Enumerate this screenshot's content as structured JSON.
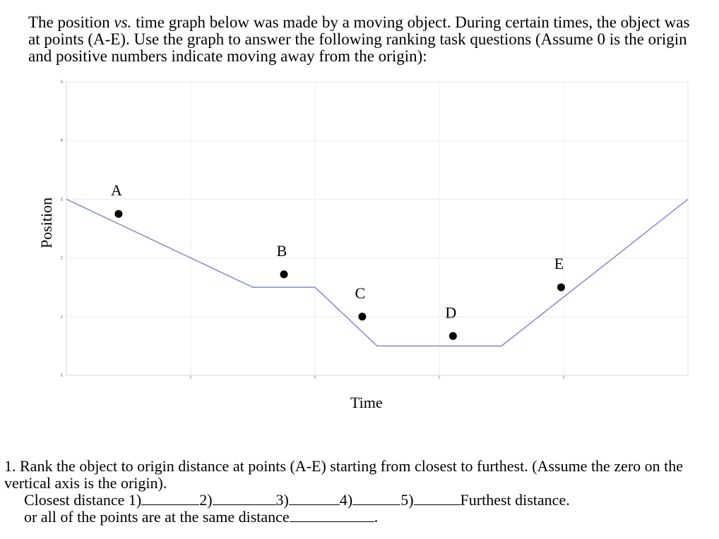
{
  "intro": {
    "part1": "The position ",
    "vs": "vs.",
    "part2": " time graph below was made by a moving object. During certain times, the object was at points (A-E). Use the graph to answer the following ranking task questions (Assume 0 is the origin and positive numbers indicate moving away from the origin):"
  },
  "chart_data": {
    "type": "line",
    "xlabel": "Time",
    "ylabel": "Position",
    "ylim": [
      0,
      5
    ],
    "xlim": [
      0,
      5
    ],
    "yticks": [
      "0",
      "1",
      "2",
      "3",
      "4",
      "5"
    ],
    "grid": true,
    "series": [
      {
        "x": [
          0,
          1.5,
          2.0,
          2.5,
          3.5,
          5.0
        ],
        "y": [
          3.0,
          1.5,
          1.5,
          0.5,
          0.5,
          3.0
        ],
        "color": "#8a8ed6"
      }
    ],
    "points": [
      {
        "label": "A",
        "x": 0.42,
        "y": 2.75
      },
      {
        "label": "B",
        "x": 1.75,
        "y": 1.72
      },
      {
        "label": "C",
        "x": 2.38,
        "y": 1.0
      },
      {
        "label": "D",
        "x": 3.11,
        "y": 0.67
      },
      {
        "label": "E",
        "x": 3.98,
        "y": 1.5
      }
    ]
  },
  "question": {
    "text": "1. Rank the object to origin distance at points (A-E) starting from closest to furthest. (Assume the zero on the vertical axis is the origin).",
    "closest": "Closest distance 1)",
    "r2": "2)",
    "r3": "3)",
    "r4": "4)",
    "r5": "5)",
    "furthest": "Furthest distance.",
    "same": "or all of the points are at the same distance",
    "end": "."
  }
}
